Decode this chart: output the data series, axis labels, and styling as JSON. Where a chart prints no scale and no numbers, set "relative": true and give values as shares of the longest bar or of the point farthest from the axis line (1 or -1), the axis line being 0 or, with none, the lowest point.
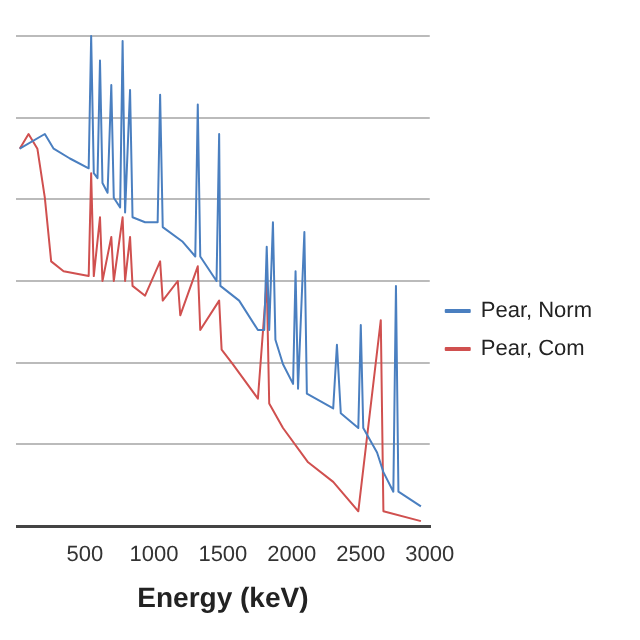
{
  "chart_data": {
    "type": "line",
    "xlabel": "Energy (keV)",
    "relative": true,
    "xlim": [
      0,
      3000
    ],
    "xticks": [
      500,
      1000,
      1500,
      2000,
      2500,
      3000
    ],
    "grid": "y",
    "legend": "right",
    "marker": "none",
    "series": [
      {
        "name": "Pear, Norm",
        "color": "#4a7fc0",
        "x": [
          27,
          209,
          273,
          391,
          527,
          545,
          564,
          591,
          609,
          627,
          664,
          691,
          709,
          755,
          773,
          791,
          827,
          845,
          936,
          1027,
          1045,
          1064,
          1209,
          1300,
          1318,
          1336,
          1454,
          1473,
          1482,
          1618,
          1754,
          1800,
          1818,
          1836,
          1863,
          1881,
          1936,
          2009,
          2027,
          2045,
          2091,
          2109,
          2300,
          2327,
          2355,
          2482,
          2500,
          2518,
          2618,
          2664,
          2736,
          2755,
          2773,
          2936
        ],
        "values": [
          0.77,
          0.8,
          0.77,
          0.75,
          0.73,
          1.0,
          0.72,
          0.71,
          0.95,
          0.7,
          0.68,
          0.9,
          0.67,
          0.65,
          0.99,
          0.64,
          0.89,
          0.63,
          0.62,
          0.62,
          0.88,
          0.61,
          0.58,
          0.55,
          0.86,
          0.55,
          0.5,
          0.8,
          0.49,
          0.46,
          0.4,
          0.4,
          0.57,
          0.4,
          0.62,
          0.38,
          0.33,
          0.29,
          0.52,
          0.28,
          0.6,
          0.27,
          0.24,
          0.37,
          0.23,
          0.2,
          0.41,
          0.2,
          0.15,
          0.11,
          0.07,
          0.49,
          0.07,
          0.04
        ]
      },
      {
        "name": "Pear, Com",
        "color": "#d0504f",
        "x": [
          27,
          91,
          155,
          209,
          255,
          345,
          527,
          545,
          564,
          609,
          627,
          691,
          709,
          773,
          791,
          827,
          845,
          936,
          1045,
          1064,
          1173,
          1191,
          1318,
          1336,
          1473,
          1491,
          1573,
          1754,
          1818,
          1836,
          1936,
          2118,
          2300,
          2482,
          2645,
          2664,
          2936
        ],
        "values": [
          0.77,
          0.8,
          0.77,
          0.67,
          0.54,
          0.52,
          0.51,
          0.72,
          0.51,
          0.63,
          0.5,
          0.59,
          0.5,
          0.63,
          0.5,
          0.59,
          0.49,
          0.47,
          0.54,
          0.46,
          0.5,
          0.43,
          0.53,
          0.4,
          0.46,
          0.36,
          0.33,
          0.26,
          0.5,
          0.25,
          0.2,
          0.13,
          0.09,
          0.03,
          0.42,
          0.03,
          0.01
        ]
      }
    ]
  }
}
